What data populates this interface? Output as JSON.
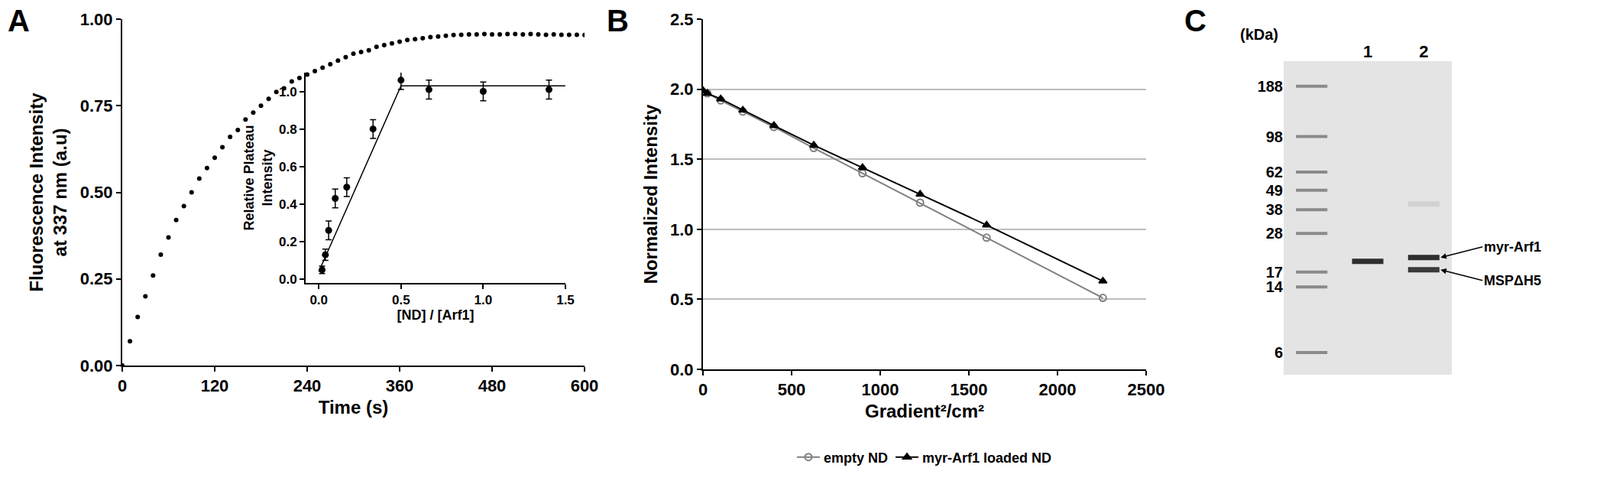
{
  "chart_data": [
    {
      "panel": "A",
      "type": "scatter",
      "xlabel": "Time (s)",
      "ylabel": [
        "Fluorescence Intensity",
        "at 337 nm (a.u)"
      ],
      "x": [
        0,
        10,
        20,
        30,
        40,
        50,
        60,
        70,
        80,
        90,
        100,
        110,
        120,
        130,
        140,
        150,
        160,
        170,
        180,
        190,
        200,
        210,
        220,
        230,
        240,
        250,
        260,
        270,
        280,
        290,
        300,
        310,
        320,
        330,
        340,
        350,
        360,
        370,
        380,
        390,
        400,
        410,
        420,
        430,
        440,
        450,
        460,
        470,
        480,
        490,
        500,
        510,
        520,
        530,
        540,
        550,
        560,
        570,
        580,
        590,
        600
      ],
      "values": [
        0.0,
        0.07,
        0.14,
        0.2,
        0.26,
        0.32,
        0.37,
        0.42,
        0.46,
        0.5,
        0.54,
        0.57,
        0.6,
        0.63,
        0.66,
        0.68,
        0.71,
        0.73,
        0.75,
        0.77,
        0.79,
        0.8,
        0.82,
        0.83,
        0.84,
        0.85,
        0.86,
        0.87,
        0.88,
        0.89,
        0.9,
        0.905,
        0.91,
        0.92,
        0.925,
        0.93,
        0.935,
        0.94,
        0.942,
        0.945,
        0.948,
        0.95,
        0.952,
        0.954,
        0.955,
        0.956,
        0.956,
        0.957,
        0.956,
        0.956,
        0.957,
        0.957,
        0.956,
        0.957,
        0.956,
        0.955,
        0.956,
        0.955,
        0.955,
        0.955,
        0.954
      ],
      "color": "#000000",
      "marker": "circle",
      "xlim": [
        0,
        600
      ],
      "xticks": [
        0,
        120,
        240,
        360,
        480,
        600
      ],
      "ylim": [
        0,
        1
      ],
      "yticks": [
        {
          "value": 0,
          "label": "0.00"
        },
        0.25,
        {
          "value": 0.5,
          "label": "0.50"
        },
        0.75,
        {
          "value": 1,
          "label": "1.00"
        }
      ]
    },
    {
      "type": "scatter",
      "xlabel": "[ND] / [Arf1]",
      "ylabel": [
        "Relative Plateau",
        "Intensity"
      ],
      "x": [
        0.02,
        0.04,
        0.06,
        0.1,
        0.17,
        0.33,
        0.5,
        0.67,
        1.0,
        1.4
      ],
      "values": [
        0.05,
        0.13,
        0.26,
        0.43,
        0.49,
        0.8,
        1.06,
        1.01,
        1.0,
        1.01
      ],
      "errors": [
        0.02,
        0.03,
        0.05,
        0.05,
        0.05,
        0.05,
        0.05,
        0.05,
        0.05,
        0.05
      ],
      "fit": {
        "x": [
          0,
          0.5,
          1.5
        ],
        "values": [
          0.04,
          1.03,
          1.03
        ]
      },
      "color": "#000000",
      "marker": "circle",
      "xlim": [
        -0.08,
        1.5
      ],
      "xticks": [
        {
          "value": 0,
          "label": "0.0"
        },
        0.5,
        {
          "value": 1,
          "label": "1.0"
        },
        1.5
      ],
      "ylim": [
        -0.02,
        1.1
      ],
      "yticks": [
        {
          "value": 0,
          "label": "0.0"
        },
        0.2,
        0.4,
        0.6,
        0.8,
        {
          "value": 1,
          "label": "1.0"
        }
      ]
    },
    {
      "panel": "B",
      "type": "line",
      "xlabel": "Gradient²/cm²",
      "ylabel": [
        "Normalized Intensity"
      ],
      "x": [
        0,
        25,
        100,
        225,
        400,
        625,
        900,
        1225,
        1600,
        2256
      ],
      "series": [
        {
          "name": "empty ND",
          "color": "#808080",
          "marker": "circle-open",
          "values": [
            1.98,
            1.97,
            1.92,
            1.84,
            1.73,
            1.58,
            1.4,
            1.19,
            0.94,
            0.51
          ]
        },
        {
          "name": "myr-Arf1 loaded ND",
          "color": "#000000",
          "marker": "triangle-up",
          "values": [
            1.99,
            1.97,
            1.93,
            1.85,
            1.74,
            1.6,
            1.44,
            1.25,
            1.03,
            0.63
          ]
        }
      ],
      "xlim": [
        0,
        2500
      ],
      "xticks": [
        0,
        500,
        1000,
        1500,
        2000,
        2500
      ],
      "ylim": [
        0,
        2.5
      ],
      "yticks": [
        {
          "value": 0,
          "label": "0.0"
        },
        0.5,
        {
          "value": 1,
          "label": "1.0"
        },
        1.5,
        {
          "value": 2,
          "label": "2.0"
        },
        2.5
      ],
      "grid": true,
      "legend": "bottom"
    },
    {
      "panel": "C",
      "type": "gel",
      "unit_label": "(kDa)",
      "log": "y",
      "categories": [
        null,
        "1",
        "2"
      ],
      "bands": [
        {
          "kDa": [
            188,
            98,
            62,
            49,
            38,
            28,
            17,
            14,
            6
          ],
          "colors": [
            "#8a8a8a",
            "#8a8a8a",
            "#8a8a8a",
            "#8a8a8a",
            "#8a8a8a",
            "#8a8a8a",
            "#8a8a8a",
            "#8a8a8a",
            "#8a8a8a"
          ]
        },
        {
          "kDa": [
            19.5
          ],
          "colors": [
            "#2e2e2e"
          ]
        },
        {
          "kDa": [
            20.5,
            17.5,
            41
          ],
          "colors": [
            "#2e2e2e",
            "#3a3a3a",
            "#d2d2d2"
          ]
        }
      ],
      "ylim": [
        4.5,
        260
      ],
      "yticks": [
        188,
        98,
        62,
        49,
        38,
        28,
        17,
        14,
        6
      ],
      "band_labels": [
        {
          "text": "myr-Arf1",
          "kDa": 20.5
        },
        {
          "text": "MSPΔH5",
          "kDa": 17.5
        }
      ]
    }
  ]
}
